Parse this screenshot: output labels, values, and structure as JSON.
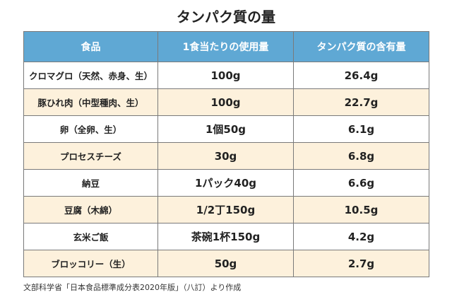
{
  "title": "タンパク質の量",
  "colors": {
    "header_bg": "#5fa8d4",
    "header_text": "#ffffff",
    "row_alt_bg": "#fdf1dc",
    "row_bg": "#ffffff",
    "border": "#7a7a7a"
  },
  "table": {
    "headers": [
      "食品",
      "1食当たりの使用量",
      "タンパク質の含有量"
    ],
    "rows": [
      {
        "food": "クロマグロ（天然、赤身、生）",
        "amount": "100g",
        "protein": "26.4g"
      },
      {
        "food": "豚ひれ肉（中型種肉、生）",
        "amount": "100g",
        "protein": "22.7g"
      },
      {
        "food": "卵（全卵、生）",
        "amount": "1個50g",
        "protein": "6.1g"
      },
      {
        "food": "プロセスチーズ",
        "amount": "30g",
        "protein": "6.8g"
      },
      {
        "food": "納豆",
        "amount": "1パック40g",
        "protein": "6.6g"
      },
      {
        "food": "豆腐（木綿）",
        "amount": "1/2丁150g",
        "protein": "10.5g"
      },
      {
        "food": "玄米ご飯",
        "amount": "茶碗1杯150g",
        "protein": "4.2g"
      },
      {
        "food": "ブロッコリー（生）",
        "amount": "50g",
        "protein": "2.7g"
      }
    ]
  },
  "source": "文部科学省「日本食品標準成分表2020年版」（八訂）より作成"
}
